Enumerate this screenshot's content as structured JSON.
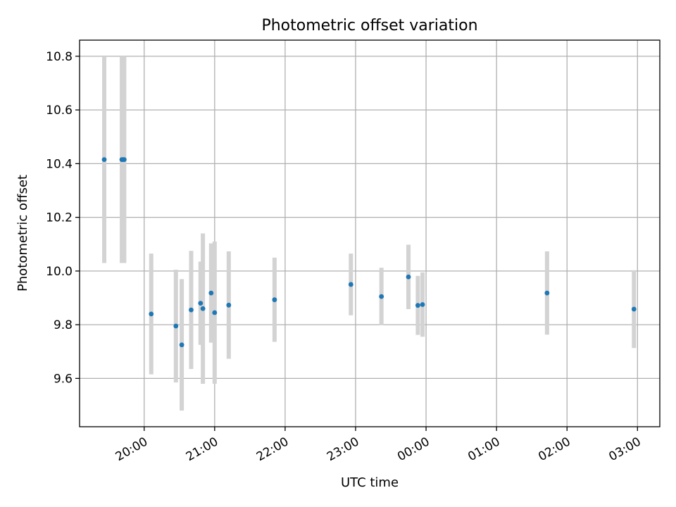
{
  "chart_data": {
    "type": "scatter",
    "title": "Photometric offset variation",
    "xlabel": "UTC time",
    "ylabel": "Photometric offset",
    "x_axis_type": "time",
    "xlim": [
      "19:05",
      "03:19"
    ],
    "ylim": [
      9.42,
      10.86
    ],
    "grid": true,
    "x_ticks": [
      "20:00",
      "21:00",
      "22:00",
      "23:00",
      "00:00",
      "01:00",
      "02:00",
      "03:00"
    ],
    "y_ticks": [
      "9.6",
      "9.8",
      "10.0",
      "10.2",
      "10.4",
      "10.6",
      "10.8"
    ],
    "colors": {
      "point": "#1f77b4",
      "errorbar": "#d3d3d3",
      "grid": "#b0b0b0"
    },
    "series": [
      {
        "points": [
          {
            "x": "19:26",
            "y": 10.415,
            "err": 0.385
          },
          {
            "x": "19:41",
            "y": 10.415,
            "err": 0.385
          },
          {
            "x": "19:42",
            "y": 10.415,
            "err": 0.385
          },
          {
            "x": "19:43",
            "y": 10.415,
            "err": 0.385
          },
          {
            "x": "20:06",
            "y": 9.84,
            "err": 0.225
          },
          {
            "x": "20:27",
            "y": 9.795,
            "err": 0.21
          },
          {
            "x": "20:32",
            "y": 9.725,
            "err": 0.245
          },
          {
            "x": "20:40",
            "y": 9.855,
            "err": 0.22
          },
          {
            "x": "20:48",
            "y": 9.88,
            "err": 0.155
          },
          {
            "x": "20:50",
            "y": 9.86,
            "err": 0.28
          },
          {
            "x": "20:57",
            "y": 9.918,
            "err": 0.185
          },
          {
            "x": "21:00",
            "y": 9.845,
            "err": 0.265
          },
          {
            "x": "21:12",
            "y": 9.873,
            "err": 0.2
          },
          {
            "x": "21:51",
            "y": 9.893,
            "err": 0.157
          },
          {
            "x": "22:56",
            "y": 9.95,
            "err": 0.115
          },
          {
            "x": "23:22",
            "y": 9.905,
            "err": 0.107
          },
          {
            "x": "23:45",
            "y": 9.978,
            "err": 0.12
          },
          {
            "x": "23:53",
            "y": 9.872,
            "err": 0.11
          },
          {
            "x": "23:57",
            "y": 9.875,
            "err": 0.12
          },
          {
            "x": "01:43",
            "y": 9.918,
            "err": 0.155
          },
          {
            "x": "02:57",
            "y": 9.858,
            "err": 0.145
          }
        ]
      }
    ]
  }
}
